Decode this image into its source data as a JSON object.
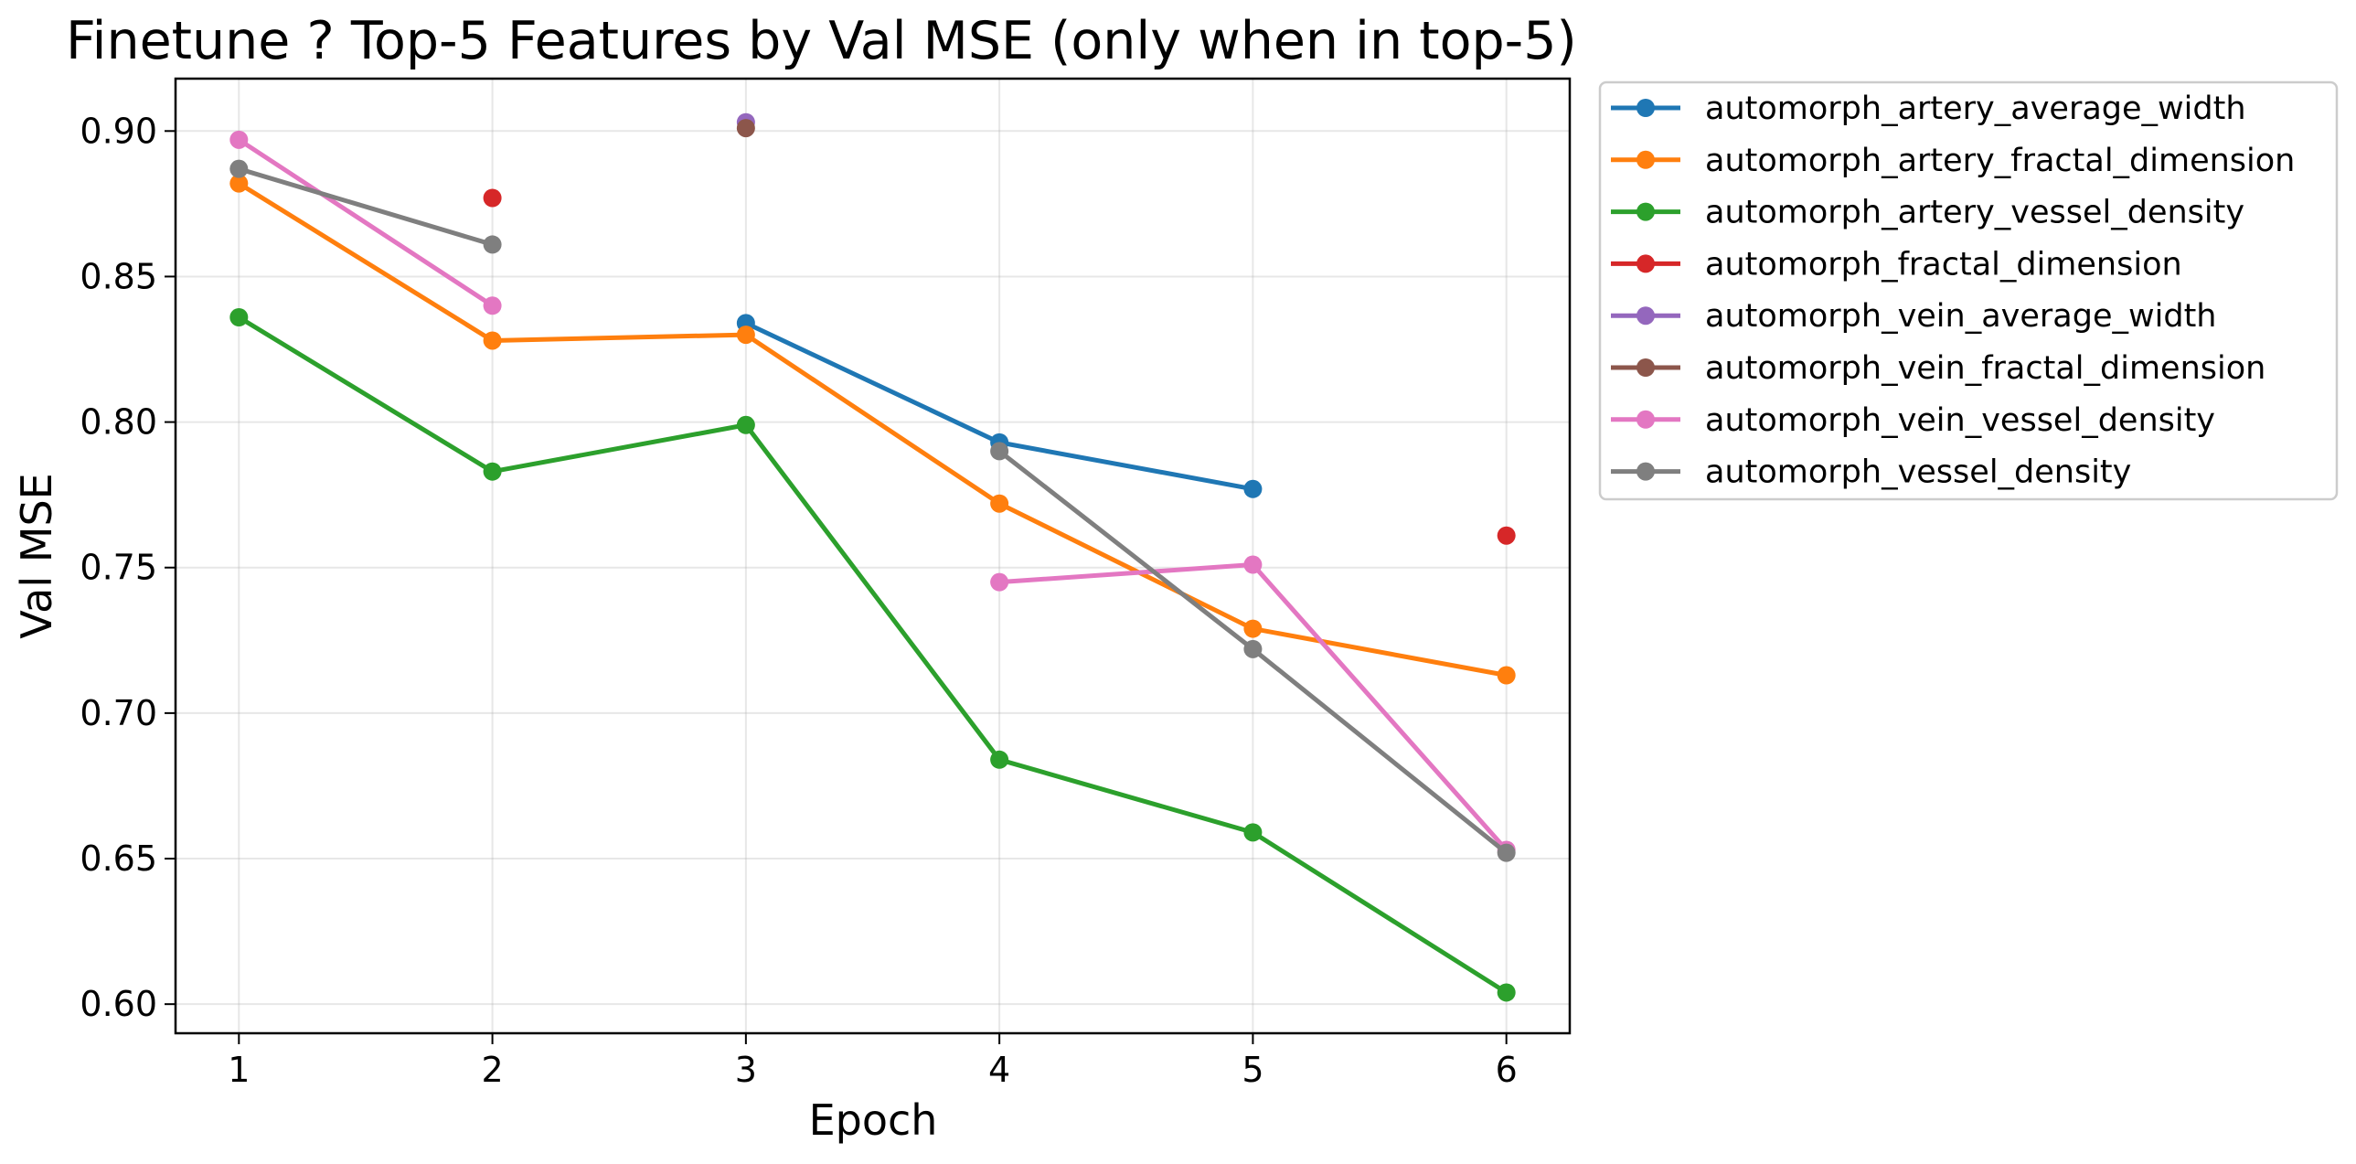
{
  "chart_data": {
    "type": "line",
    "title": "Finetune ? Top-5 Features by Val MSE (only when in top-5)",
    "xlabel": "Epoch",
    "ylabel": "Val MSE",
    "x": [
      1,
      2,
      3,
      4,
      5,
      6
    ],
    "xticks": [
      "1",
      "2",
      "3",
      "4",
      "5",
      "6"
    ],
    "yticks": [
      "0.60",
      "0.65",
      "0.70",
      "0.75",
      "0.80",
      "0.85",
      "0.90"
    ],
    "xlim": [
      0.75,
      6.25
    ],
    "ylim": [
      0.59,
      0.918
    ],
    "grid": true,
    "legend": "outside-upper-right",
    "series": [
      {
        "name": "automorph_artery_average_width",
        "color": "#1f77b4",
        "values": [
          null,
          null,
          0.834,
          0.793,
          0.777,
          null
        ]
      },
      {
        "name": "automorph_artery_fractal_dimension",
        "color": "#ff7f0e",
        "values": [
          0.882,
          0.828,
          0.83,
          0.772,
          0.729,
          0.713
        ]
      },
      {
        "name": "automorph_artery_vessel_density",
        "color": "#2ca02c",
        "values": [
          0.836,
          0.783,
          0.799,
          0.684,
          0.659,
          0.604
        ]
      },
      {
        "name": "automorph_fractal_dimension",
        "color": "#d62728",
        "values": [
          null,
          0.877,
          null,
          null,
          null,
          0.761
        ]
      },
      {
        "name": "automorph_vein_average_width",
        "color": "#9467bd",
        "values": [
          null,
          null,
          0.903,
          null,
          null,
          null
        ]
      },
      {
        "name": "automorph_vein_fractal_dimension",
        "color": "#8c564b",
        "values": [
          null,
          null,
          0.901,
          null,
          null,
          null
        ]
      },
      {
        "name": "automorph_vein_vessel_density",
        "color": "#e377c2",
        "values": [
          0.897,
          0.84,
          null,
          0.745,
          0.751,
          0.653
        ]
      },
      {
        "name": "automorph_vessel_density",
        "color": "#7f7f7f",
        "values": [
          0.887,
          0.861,
          null,
          0.79,
          0.722,
          0.652
        ]
      }
    ]
  }
}
